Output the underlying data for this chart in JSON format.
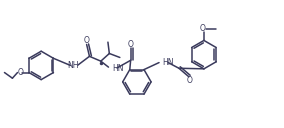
{
  "bg_color": "#ffffff",
  "bond_color": "#3a3a5c",
  "bond_lw": 1.1,
  "figsize": [
    2.84,
    1.28
  ],
  "dpi": 100,
  "xlim": [
    0,
    10.0
  ],
  "ylim": [
    0.0,
    4.5
  ]
}
